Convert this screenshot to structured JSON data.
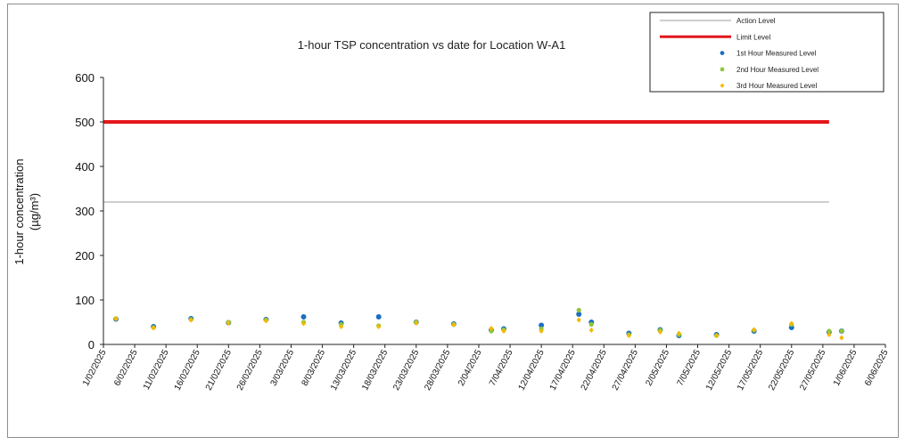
{
  "chart_data": {
    "type": "scatter",
    "title": "1-hour TSP concentration vs date for Location W-A1",
    "ylabel_line1": "1-hour concentration",
    "ylabel_line2": "(µg/m³)",
    "xlabel": "",
    "ylim": [
      0,
      600
    ],
    "yticks": [
      "0",
      "100",
      "200",
      "300",
      "400",
      "500",
      "600"
    ],
    "xticks": [
      "1/02/2025",
      "6/02/2025",
      "11/02/2025",
      "16/02/2025",
      "21/02/2025",
      "26/02/2025",
      "3/03/2025",
      "8/03/2025",
      "13/03/2025",
      "18/03/2025",
      "23/03/2025",
      "28/03/2025",
      "2/04/2025",
      "7/04/2025",
      "12/04/2025",
      "17/04/2025",
      "22/04/2025",
      "27/04/2025",
      "2/05/2025",
      "7/05/2025",
      "12/05/2025",
      "17/05/2025",
      "22/05/2025",
      "27/05/2025",
      "1/06/2025",
      "6/06/2025"
    ],
    "lines": [
      {
        "name": "Action Level",
        "color": "#9e9e9e",
        "value": 320,
        "from": "1/02/2025",
        "to": "28/05/2025"
      },
      {
        "name": "Limit Level",
        "color": "#e4161b",
        "value": 500,
        "from": "1/02/2025",
        "to": "28/05/2025"
      }
    ],
    "series": [
      {
        "name": "1st Hour Measured Level",
        "color": "#1b6ec2",
        "x": [
          "3/02/2025",
          "9/02/2025",
          "15/02/2025",
          "21/02/2025",
          "27/02/2025",
          "5/03/2025",
          "11/03/2025",
          "17/03/2025",
          "23/03/2025",
          "29/03/2025",
          "4/04/2025",
          "6/04/2025",
          "12/04/2025",
          "18/04/2025",
          "20/04/2025",
          "26/04/2025",
          "1/05/2025",
          "4/05/2025",
          "10/05/2025",
          "16/05/2025",
          "22/05/2025",
          "28/05/2025",
          "30/05/2025"
        ],
        "y": [
          57,
          40,
          58,
          49,
          56,
          62,
          48,
          62,
          50,
          46,
          32,
          35,
          43,
          68,
          50,
          25,
          33,
          20,
          22,
          30,
          38,
          28,
          30
        ]
      },
      {
        "name": "2nd Hour Measured Level",
        "color": "#8dc63f",
        "x": [
          "3/02/2025",
          "9/02/2025",
          "15/02/2025",
          "21/02/2025",
          "27/02/2025",
          "5/03/2025",
          "11/03/2025",
          "17/03/2025",
          "23/03/2025",
          "29/03/2025",
          "4/04/2025",
          "6/04/2025",
          "12/04/2025",
          "18/04/2025",
          "20/04/2025",
          "26/04/2025",
          "1/05/2025",
          "4/05/2025",
          "10/05/2025",
          "16/05/2025",
          "22/05/2025",
          "28/05/2025",
          "30/05/2025"
        ],
        "y": [
          58,
          38,
          56,
          50,
          55,
          50,
          45,
          42,
          50,
          45,
          30,
          33,
          35,
          77,
          45,
          22,
          32,
          22,
          20,
          32,
          45,
          30,
          30
        ]
      },
      {
        "name": "3rd Hour Measured Level",
        "color": "#f5b800",
        "x": [
          "3/02/2025",
          "9/02/2025",
          "15/02/2025",
          "21/02/2025",
          "27/02/2025",
          "5/03/2025",
          "11/03/2025",
          "17/03/2025",
          "23/03/2025",
          "29/03/2025",
          "4/04/2025",
          "6/04/2025",
          "12/04/2025",
          "18/04/2025",
          "20/04/2025",
          "26/04/2025",
          "1/05/2025",
          "4/05/2025",
          "10/05/2025",
          "16/05/2025",
          "22/05/2025",
          "28/05/2025",
          "30/05/2025"
        ],
        "y": [
          58,
          37,
          55,
          48,
          53,
          47,
          40,
          40,
          48,
          44,
          36,
          30,
          30,
          55,
          32,
          20,
          28,
          25,
          20,
          33,
          47,
          22,
          15
        ]
      }
    ],
    "legend_position": "top-right",
    "grid": false
  }
}
